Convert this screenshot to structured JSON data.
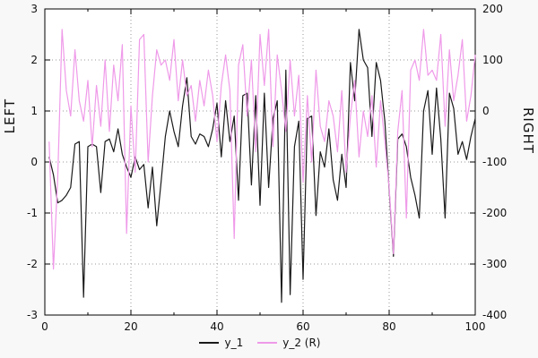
{
  "chart": {
    "left_axis_label": "LEFT",
    "right_axis_label": "RIGHT"
  },
  "chart_data": {
    "type": "line",
    "title": "",
    "xlabel": "",
    "ylabel_left": "LEFT",
    "ylabel_right": "RIGHT",
    "grid": true,
    "legend_position": "bottom-center",
    "xlim": [
      0,
      100
    ],
    "left_ylim": [
      -3,
      3
    ],
    "right_ylim": [
      -400,
      200
    ],
    "x_ticks": [
      0,
      20,
      40,
      60,
      80,
      100
    ],
    "x_minor_ticks": [
      10,
      30,
      50,
      70,
      90
    ],
    "left_ticks": [
      -3,
      -2,
      -1,
      0,
      1,
      2,
      3
    ],
    "right_ticks": [
      -400,
      -300,
      -200,
      -100,
      0,
      100,
      200
    ],
    "x": [
      1,
      2,
      3,
      4,
      5,
      6,
      7,
      8,
      9,
      10,
      11,
      12,
      13,
      14,
      15,
      16,
      17,
      18,
      19,
      20,
      21,
      22,
      23,
      24,
      25,
      26,
      27,
      28,
      29,
      30,
      31,
      32,
      33,
      34,
      35,
      36,
      37,
      38,
      39,
      40,
      41,
      42,
      43,
      44,
      45,
      46,
      47,
      48,
      49,
      50,
      51,
      52,
      53,
      54,
      55,
      56,
      57,
      58,
      59,
      60,
      61,
      62,
      63,
      64,
      65,
      66,
      67,
      68,
      69,
      70,
      71,
      72,
      73,
      74,
      75,
      76,
      77,
      78,
      79,
      80,
      81,
      82,
      83,
      84,
      85,
      86,
      87,
      88,
      89,
      90,
      91,
      92,
      93,
      94,
      95,
      96,
      97,
      98,
      99,
      100
    ],
    "series": [
      {
        "name": "y_1",
        "axis": "left",
        "color": "#1a1a1a",
        "values": [
          0.1,
          -0.25,
          -0.8,
          -0.75,
          -0.65,
          -0.5,
          0.35,
          0.4,
          -2.65,
          0.3,
          0.35,
          0.3,
          -0.6,
          0.4,
          0.45,
          0.2,
          0.65,
          0.15,
          -0.1,
          -0.3,
          0.1,
          -0.15,
          -0.05,
          -0.9,
          -0.1,
          -1.25,
          -0.4,
          0.5,
          1.0,
          0.6,
          0.3,
          1.1,
          1.65,
          0.5,
          0.35,
          0.55,
          0.5,
          0.3,
          0.65,
          1.15,
          0.1,
          1.2,
          0.4,
          0.9,
          -0.75,
          1.3,
          1.35,
          -0.45,
          1.3,
          -0.85,
          1.35,
          -0.5,
          0.85,
          1.2,
          -2.75,
          1.8,
          -2.6,
          0.3,
          0.8,
          -2.3,
          0.85,
          0.9,
          -1.05,
          0.2,
          -0.1,
          0.65,
          -0.35,
          -0.75,
          0.15,
          -0.5,
          1.95,
          1.2,
          2.6,
          2.0,
          1.85,
          0.5,
          1.95,
          1.6,
          0.8,
          -0.55,
          -1.85,
          0.45,
          0.55,
          0.3,
          -0.3,
          -0.65,
          -1.1,
          1.0,
          1.4,
          0.15,
          1.45,
          0.45,
          -1.1,
          1.35,
          1.05,
          0.15,
          0.4,
          0.05,
          0.5,
          0.85
        ]
      },
      {
        "name": "y_2 (R)",
        "axis": "right",
        "color": "#ef9ae9",
        "values": [
          -60,
          -310,
          -130,
          160,
          40,
          -10,
          120,
          20,
          -20,
          60,
          -70,
          50,
          -30,
          100,
          -40,
          90,
          20,
          130,
          -240,
          10,
          -120,
          140,
          150,
          -100,
          30,
          120,
          90,
          100,
          60,
          140,
          20,
          100,
          30,
          50,
          -20,
          60,
          10,
          80,
          30,
          -60,
          50,
          110,
          40,
          -250,
          90,
          130,
          -10,
          100,
          -80,
          150,
          50,
          160,
          -70,
          110,
          40,
          -40,
          100,
          -10,
          70,
          -140,
          30,
          -100,
          80,
          -30,
          -60,
          20,
          -10,
          -80,
          40,
          -120,
          -10,
          60,
          -90,
          0,
          -50,
          30,
          -110,
          20,
          -60,
          -150,
          -280,
          -40,
          40,
          -210,
          80,
          100,
          60,
          160,
          70,
          80,
          60,
          150,
          -30,
          120,
          20,
          70,
          140,
          -20,
          30,
          110
        ]
      }
    ]
  }
}
